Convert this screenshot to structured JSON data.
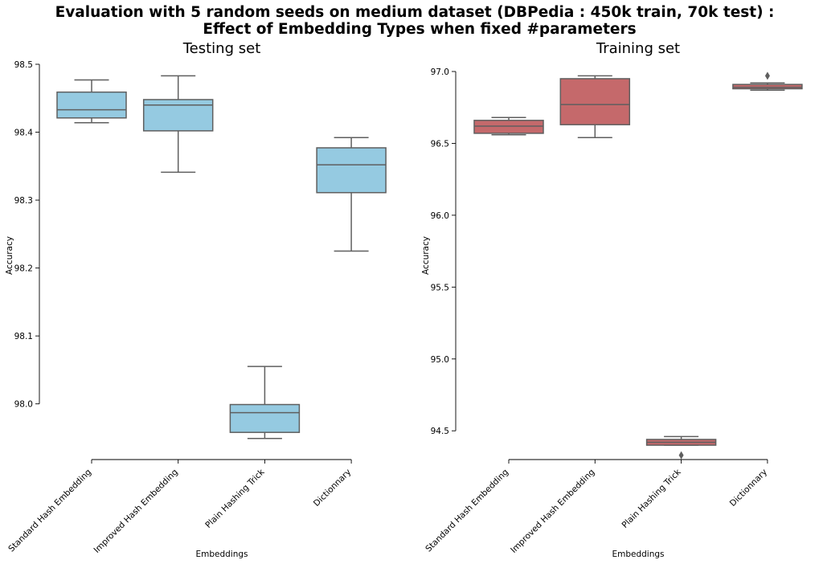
{
  "figure": {
    "title_line1": "Evaluation with 5 random seeds on medium dataset (DBPedia : 450k train, 70k test) :",
    "title_line2": "Effect of Embedding Types when fixed #parameters"
  },
  "chart_data": [
    {
      "type": "box",
      "title": "Testing set",
      "xlabel": "Embeddings",
      "ylabel": "Accuracy",
      "categories": [
        "Standard Hash Embedding",
        "Improved Hash Embedding",
        "Plain Hashing Trick",
        "Dictionnary"
      ],
      "ylim": [
        97.918,
        98.5
      ],
      "yticks": [
        98.0,
        98.1,
        98.2,
        98.3,
        98.4,
        98.5
      ],
      "ytick_labels": [
        "98.0",
        "98.1",
        "98.2",
        "98.3",
        "98.4",
        "98.5"
      ],
      "color": "#95cae1",
      "boxes": [
        {
          "whislo": 98.414,
          "q1": 98.421,
          "med": 98.433,
          "q3": 98.459,
          "whishi": 98.477,
          "fliers": []
        },
        {
          "whislo": 98.341,
          "q1": 98.402,
          "med": 98.44,
          "q3": 98.448,
          "whishi": 98.483,
          "fliers": []
        },
        {
          "whislo": 97.949,
          "q1": 97.958,
          "med": 97.987,
          "q3": 97.999,
          "whishi": 98.055,
          "fliers": []
        },
        {
          "whislo": 98.225,
          "q1": 98.311,
          "med": 98.352,
          "q3": 98.377,
          "whishi": 98.392,
          "fliers": []
        }
      ],
      "grid": false,
      "legend": "none"
    },
    {
      "type": "box",
      "title": "Training set",
      "xlabel": "Embeddings",
      "ylabel": "Accuracy",
      "categories": [
        "Standard Hash Embedding",
        "Improved Hash Embedding",
        "Plain Hashing Trick",
        "Dictionnary"
      ],
      "ylim": [
        94.3,
        97.0
      ],
      "yticks": [
        94.5,
        95.0,
        95.5,
        96.0,
        96.5,
        97.0
      ],
      "ytick_labels": [
        "94.5",
        "95.0",
        "95.5",
        "96.0",
        "96.5",
        "97.0"
      ],
      "color": "#c5696b",
      "boxes": [
        {
          "whislo": 96.56,
          "q1": 96.57,
          "med": 96.62,
          "q3": 96.66,
          "whishi": 96.68,
          "fliers": []
        },
        {
          "whislo": 96.54,
          "q1": 96.63,
          "med": 96.77,
          "q3": 96.95,
          "whishi": 96.97,
          "fliers": []
        },
        {
          "whislo": 94.4,
          "q1": 94.4,
          "med": 94.42,
          "q3": 94.44,
          "whishi": 94.46,
          "fliers": [
            94.33
          ]
        },
        {
          "whislo": 96.87,
          "q1": 96.88,
          "med": 96.89,
          "q3": 96.91,
          "whishi": 96.92,
          "fliers": [
            96.97
          ]
        }
      ],
      "grid": false,
      "legend": "none"
    }
  ]
}
